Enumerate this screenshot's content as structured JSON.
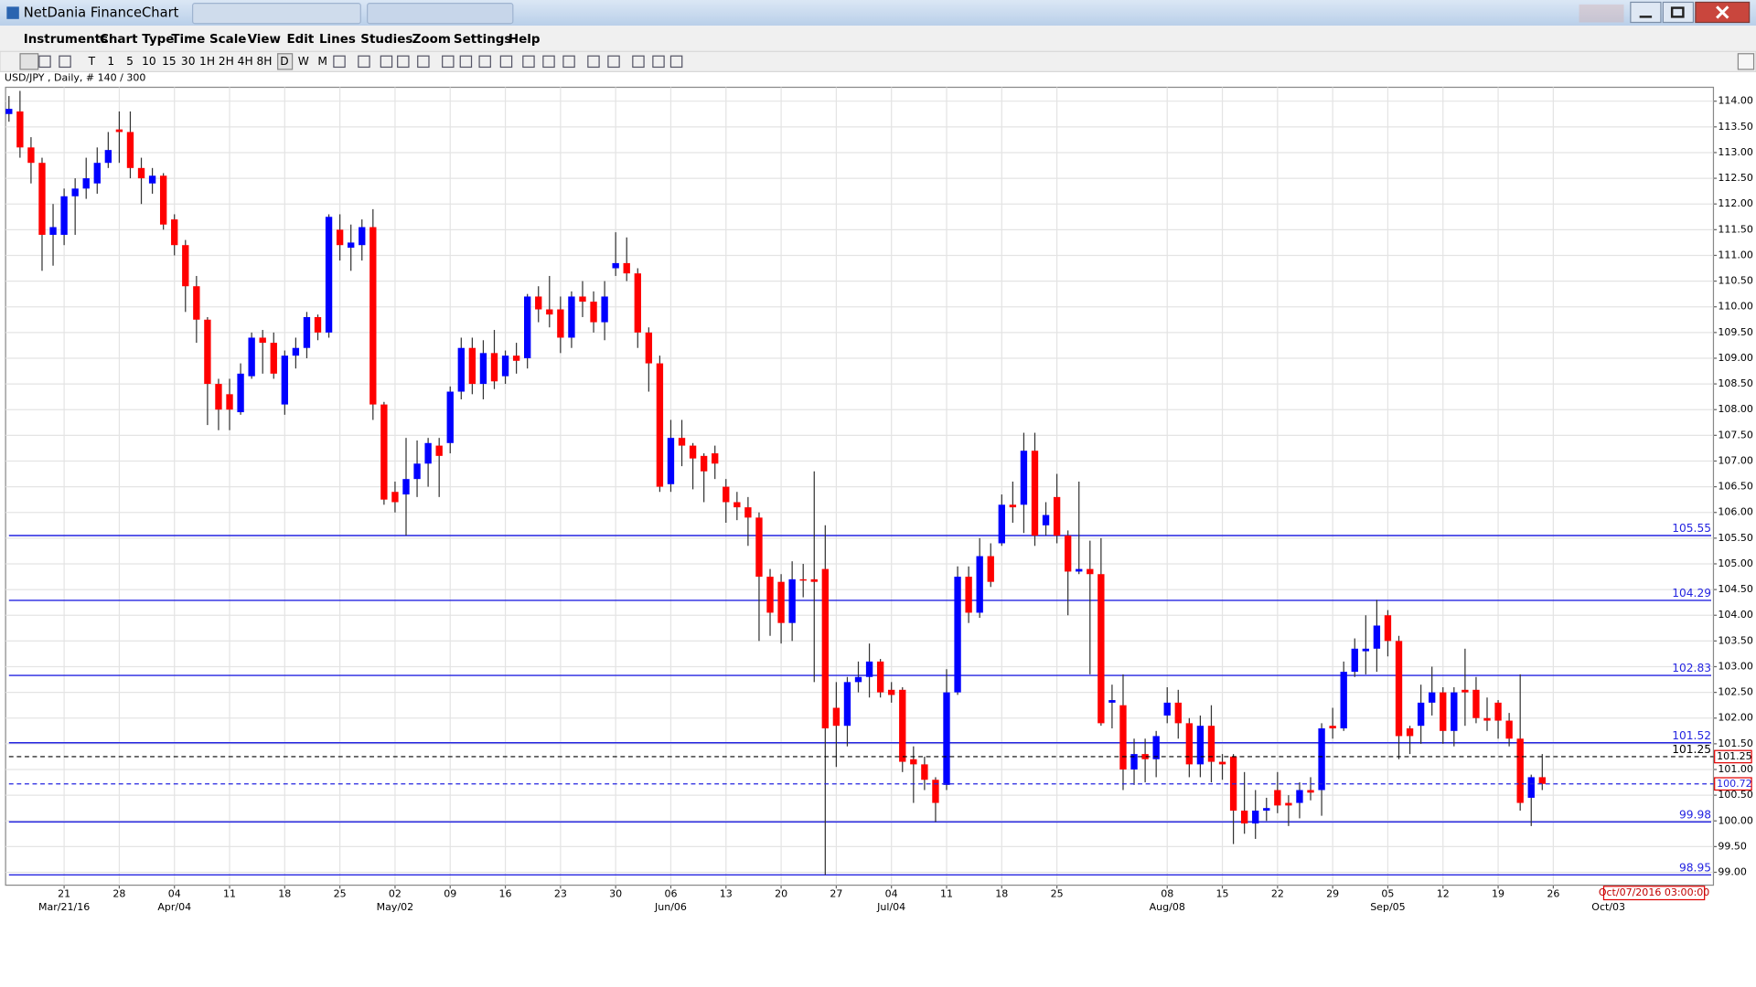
{
  "window": {
    "title": "NetDania FinanceChart"
  },
  "menu": [
    "Instruments",
    "Chart Type",
    "Time Scale",
    "View",
    "Edit",
    "Lines",
    "Studies",
    "Zoom",
    "Settings",
    "Help"
  ],
  "toolbar": [
    "T",
    "1",
    "5",
    "10",
    "15",
    "30",
    "1H",
    "2H",
    "4H",
    "8H",
    "D",
    "W",
    "M"
  ],
  "chart_data": {
    "type": "candlestick",
    "title": "USD/JPY , Daily, # 140 / 300",
    "up_color": "#0000ff",
    "down_color": "#ff0000",
    "x": [
      "2016-03-14",
      "2016-03-15",
      "2016-03-16",
      "2016-03-17",
      "2016-03-18",
      "2016-03-21",
      "2016-03-22",
      "2016-03-23",
      "2016-03-24",
      "2016-03-25",
      "2016-03-28",
      "2016-03-29",
      "2016-03-30",
      "2016-03-31",
      "2016-04-01",
      "2016-04-04",
      "2016-04-05",
      "2016-04-06",
      "2016-04-07",
      "2016-04-08",
      "2016-04-11",
      "2016-04-12",
      "2016-04-13",
      "2016-04-14",
      "2016-04-15",
      "2016-04-18",
      "2016-04-19",
      "2016-04-20",
      "2016-04-21",
      "2016-04-22",
      "2016-04-25",
      "2016-04-26",
      "2016-04-27",
      "2016-04-28",
      "2016-04-29",
      "2016-05-02",
      "2016-05-03",
      "2016-05-04",
      "2016-05-05",
      "2016-05-06",
      "2016-05-09",
      "2016-05-10",
      "2016-05-11",
      "2016-05-12",
      "2016-05-13",
      "2016-05-16",
      "2016-05-17",
      "2016-05-18",
      "2016-05-19",
      "2016-05-20",
      "2016-05-23",
      "2016-05-24",
      "2016-05-25",
      "2016-05-26",
      "2016-05-27",
      "2016-05-30",
      "2016-05-31",
      "2016-06-01",
      "2016-06-02",
      "2016-06-03",
      "2016-06-06",
      "2016-06-07",
      "2016-06-08",
      "2016-06-09",
      "2016-06-10",
      "2016-06-13",
      "2016-06-14",
      "2016-06-15",
      "2016-06-16",
      "2016-06-17",
      "2016-06-20",
      "2016-06-21",
      "2016-06-22",
      "2016-06-23",
      "2016-06-24",
      "2016-06-27",
      "2016-06-28",
      "2016-06-29",
      "2016-06-30",
      "2016-07-01",
      "2016-07-04",
      "2016-07-05",
      "2016-07-06",
      "2016-07-07",
      "2016-07-08",
      "2016-07-11",
      "2016-07-12",
      "2016-07-13",
      "2016-07-14",
      "2016-07-15",
      "2016-07-18",
      "2016-07-19",
      "2016-07-20",
      "2016-07-21",
      "2016-07-22",
      "2016-07-25",
      "2016-07-26",
      "2016-07-27",
      "2016-07-28",
      "2016-07-29",
      "2016-08-01",
      "2016-08-02",
      "2016-08-03",
      "2016-08-04",
      "2016-08-05",
      "2016-08-08",
      "2016-08-09",
      "2016-08-10",
      "2016-08-11",
      "2016-08-12",
      "2016-08-15",
      "2016-08-16",
      "2016-08-17",
      "2016-08-18",
      "2016-08-19",
      "2016-08-22",
      "2016-08-23",
      "2016-08-24",
      "2016-08-25",
      "2016-08-26",
      "2016-08-29",
      "2016-08-30",
      "2016-08-31",
      "2016-09-01",
      "2016-09-02",
      "2016-09-05",
      "2016-09-06",
      "2016-09-07",
      "2016-09-08",
      "2016-09-09",
      "2016-09-12",
      "2016-09-13",
      "2016-09-14",
      "2016-09-15",
      "2016-09-16",
      "2016-09-19",
      "2016-09-20",
      "2016-09-21",
      "2016-09-22",
      "2016-09-23"
    ],
    "open": [
      113.75,
      113.8,
      113.1,
      112.8,
      111.4,
      111.4,
      112.15,
      112.3,
      112.4,
      112.8,
      113.45,
      113.4,
      112.7,
      112.4,
      112.55,
      111.7,
      111.2,
      110.4,
      109.75,
      108.5,
      108.3,
      107.95,
      108.65,
      109.4,
      109.3,
      108.1,
      109.05,
      109.2,
      109.8,
      109.5,
      111.5,
      111.15,
      111.2,
      111.55,
      108.1,
      106.4,
      106.35,
      106.65,
      106.95,
      107.3,
      107.35,
      108.35,
      109.2,
      108.5,
      109.1,
      108.65,
      109.05,
      109.0,
      110.2,
      109.95,
      109.95,
      109.4,
      110.2,
      110.1,
      109.7,
      110.75,
      110.85,
      110.65,
      109.5,
      108.9,
      106.55,
      107.45,
      107.3,
      107.1,
      107.15,
      106.5,
      106.2,
      106.1,
      105.9,
      104.75,
      104.65,
      103.85,
      104.7,
      104.7,
      104.9,
      102.2,
      101.85,
      102.7,
      102.8,
      103.1,
      102.55,
      102.55,
      101.2,
      101.1,
      100.8,
      100.7,
      102.5,
      104.75,
      104.05,
      105.15,
      105.4,
      106.15,
      106.15,
      107.2,
      105.75,
      106.3,
      105.55,
      104.85,
      104.9,
      104.8,
      102.3,
      102.25,
      101.0,
      101.3,
      101.2,
      102.05,
      102.3,
      101.9,
      101.1,
      101.85,
      101.15,
      101.25,
      100.2,
      99.95,
      100.2,
      100.6,
      100.35,
      100.35,
      100.6,
      100.6,
      101.85,
      101.8,
      102.9,
      103.3,
      103.35,
      104.0,
      103.5,
      101.8,
      101.85,
      102.3,
      102.5,
      101.75,
      102.55,
      102.55,
      102.0,
      102.3,
      101.95,
      101.6,
      100.45,
      100.85
    ],
    "high": [
      114.1,
      114.2,
      113.3,
      112.9,
      112,
      112.3,
      112.5,
      112.9,
      113.1,
      113.4,
      113.8,
      113.8,
      112.9,
      112.7,
      112.6,
      111.8,
      111.3,
      110.6,
      109.8,
      108.6,
      108.6,
      108.9,
      109.5,
      109.55,
      109.5,
      109.15,
      109.4,
      109.9,
      109.85,
      111.8,
      111.8,
      111.6,
      111.7,
      111.9,
      108.15,
      106.6,
      107.45,
      107.4,
      107.45,
      107.45,
      108.45,
      109.4,
      109.4,
      109.35,
      109.55,
      109.15,
      109.3,
      110.25,
      110.4,
      110.6,
      110.2,
      110.3,
      110.5,
      110.3,
      110.5,
      111.45,
      111.35,
      110.75,
      109.6,
      109.05,
      107.8,
      107.8,
      107.35,
      107.15,
      107.3,
      106.65,
      106.4,
      106.3,
      106.0,
      104.9,
      104.8,
      105.05,
      105.0,
      106.8,
      105.75,
      102.7,
      102.8,
      103.1,
      103.45,
      103.15,
      102.7,
      102.6,
      101.45,
      101.25,
      100.85,
      102.95,
      104.95,
      104.95,
      105.5,
      105.4,
      106.35,
      106.6,
      107.55,
      107.55,
      106.2,
      106.75,
      105.65,
      106.6,
      105.45,
      105.5,
      102.65,
      102.85,
      101.6,
      101.6,
      101.75,
      102.6,
      102.55,
      102.0,
      102.05,
      102.25,
      101.3,
      101.3,
      100.95,
      100.6,
      100.45,
      100.95,
      100.5,
      100.75,
      100.85,
      101.9,
      102.2,
      103.1,
      103.55,
      104.0,
      104.3,
      104.1,
      103.6,
      101.85,
      102.65,
      103.0,
      102.6,
      102.6,
      103.35,
      102.8,
      102.4,
      102.35,
      102.1,
      102.85,
      100.9,
      101.3
    ],
    "low": [
      113.6,
      112.9,
      112.4,
      110.7,
      110.8,
      111.2,
      111.4,
      112.1,
      112.2,
      112.7,
      112.8,
      112.5,
      112.0,
      112.2,
      111.5,
      111.0,
      109.9,
      109.3,
      107.7,
      107.6,
      107.6,
      107.9,
      108.6,
      108.7,
      108.6,
      107.9,
      108.8,
      109.0,
      109.35,
      109.4,
      110.9,
      110.7,
      110.9,
      107.8,
      106.15,
      106.0,
      105.55,
      106.3,
      106.5,
      106.3,
      107.15,
      108.2,
      108.3,
      108.2,
      108.4,
      108.5,
      108.7,
      108.8,
      109.7,
      109.6,
      109.1,
      109.2,
      109.8,
      109.5,
      109.35,
      110.6,
      110.5,
      109.2,
      108.35,
      106.4,
      106.4,
      106.9,
      106.45,
      106.2,
      106.65,
      105.8,
      105.85,
      105.35,
      103.5,
      103.6,
      103.45,
      103.5,
      104.35,
      102.7,
      98.95,
      101.05,
      101.45,
      102.5,
      102.4,
      102.4,
      102.3,
      100.95,
      100.35,
      100.6,
      99.98,
      100.6,
      102.45,
      103.85,
      103.95,
      104.55,
      105.35,
      105.8,
      105.6,
      105.35,
      105.55,
      105.4,
      104.0,
      104.8,
      102.85,
      101.85,
      101.8,
      100.6,
      100.7,
      100.75,
      100.85,
      101.9,
      101.6,
      100.85,
      100.85,
      100.75,
      100.8,
      99.55,
      99.75,
      99.65,
      100.0,
      100.15,
      99.9,
      100.05,
      100.4,
      100.1,
      101.6,
      101.75,
      102.8,
      102.85,
      102.9,
      103.2,
      101.2,
      101.3,
      101.5,
      102.05,
      101.5,
      101.45,
      101.85,
      101.9,
      101.75,
      101.6,
      101.45,
      100.2,
      99.9,
      100.6
    ],
    "close": [
      113.85,
      113.1,
      112.8,
      111.4,
      111.55,
      112.15,
      112.3,
      112.5,
      112.8,
      113.05,
      113.4,
      112.7,
      112.5,
      112.55,
      111.6,
      111.2,
      110.4,
      109.75,
      108.5,
      108.0,
      108.0,
      108.7,
      109.4,
      109.3,
      108.7,
      109.05,
      109.2,
      109.8,
      109.5,
      111.75,
      111.2,
      111.25,
      111.55,
      108.1,
      106.25,
      106.2,
      106.65,
      106.95,
      107.35,
      107.1,
      108.35,
      109.2,
      108.5,
      109.1,
      108.55,
      109.05,
      108.95,
      110.2,
      109.95,
      109.85,
      109.4,
      110.2,
      110.1,
      109.7,
      110.2,
      110.85,
      110.65,
      109.5,
      108.9,
      106.5,
      107.45,
      107.3,
      107.05,
      106.8,
      106.95,
      106.2,
      106.1,
      105.9,
      104.75,
      104.05,
      103.85,
      104.7,
      104.68,
      104.65,
      101.8,
      101.85,
      102.7,
      102.8,
      103.1,
      102.5,
      102.45,
      101.15,
      101.1,
      100.8,
      100.35,
      102.5,
      104.75,
      104.05,
      105.15,
      104.65,
      106.15,
      106.1,
      107.2,
      105.55,
      105.95,
      105.55,
      104.85,
      104.9,
      104.8,
      101.9,
      102.35,
      101.0,
      101.3,
      101.2,
      101.65,
      102.3,
      101.9,
      101.1,
      101.85,
      101.15,
      101.1,
      100.2,
      99.95,
      100.2,
      100.25,
      100.3,
      100.3,
      100.6,
      100.55,
      101.8,
      101.8,
      102.9,
      103.35,
      103.35,
      103.8,
      103.5,
      101.65,
      101.65,
      102.3,
      102.5,
      101.75,
      102.5,
      102.5,
      102.0,
      101.95,
      101.95,
      101.6,
      100.35,
      100.85,
      100.72
    ],
    "ylim": [
      98.75,
      114.27
    ],
    "yticks": [
      {
        "value": 99,
        "label": "99.00"
      },
      {
        "value": 99.5,
        "label": "99.50"
      },
      {
        "value": 100,
        "label": "100.00"
      },
      {
        "value": 100.5,
        "label": "100.50"
      },
      {
        "value": 101,
        "label": "101.00"
      },
      {
        "value": 101.5,
        "label": "101.50"
      },
      {
        "value": 102,
        "label": "102.00"
      },
      {
        "value": 102.5,
        "label": "102.50"
      },
      {
        "value": 103,
        "label": "103.00"
      },
      {
        "value": 103.5,
        "label": "103.50"
      },
      {
        "value": 104,
        "label": "104.00"
      },
      {
        "value": 104.5,
        "label": "104.50"
      },
      {
        "value": 105,
        "label": "105.00"
      },
      {
        "value": 105.5,
        "label": "105.50"
      },
      {
        "value": 106,
        "label": "106.00"
      },
      {
        "value": 106.5,
        "label": "106.50"
      },
      {
        "value": 107,
        "label": "107.00"
      },
      {
        "value": 107.5,
        "label": "107.50"
      },
      {
        "value": 108,
        "label": "108.00"
      },
      {
        "value": 108.5,
        "label": "108.50"
      },
      {
        "value": 109,
        "label": "109.00"
      },
      {
        "value": 109.5,
        "label": "109.50"
      },
      {
        "value": 110,
        "label": "110.00"
      },
      {
        "value": 110.5,
        "label": "110.50"
      },
      {
        "value": 111,
        "label": "111.00"
      },
      {
        "value": 111.5,
        "label": "111.50"
      },
      {
        "value": 112,
        "label": "112.00"
      },
      {
        "value": 112.5,
        "label": "112.50"
      },
      {
        "value": 113,
        "label": "113.00"
      },
      {
        "value": 113.5,
        "label": "113.50"
      },
      {
        "value": 114,
        "label": "114.00"
      }
    ],
    "xticks": [
      {
        "value": "2016-03-21",
        "label": "21"
      },
      {
        "value": "2016-03-28",
        "label": "28"
      },
      {
        "value": "2016-04-04",
        "label": "04"
      },
      {
        "value": "2016-04-11",
        "label": "11"
      },
      {
        "value": "2016-04-18",
        "label": "18"
      },
      {
        "value": "2016-04-25",
        "label": "25"
      },
      {
        "value": "2016-05-02",
        "label": "02"
      },
      {
        "value": "2016-05-09",
        "label": "09"
      },
      {
        "value": "2016-05-16",
        "label": "16"
      },
      {
        "value": "2016-05-23",
        "label": "23"
      },
      {
        "value": "2016-05-30",
        "label": "30"
      },
      {
        "value": "2016-06-06",
        "label": "06"
      },
      {
        "value": "2016-06-13",
        "label": "13"
      },
      {
        "value": "2016-06-20",
        "label": "20"
      },
      {
        "value": "2016-06-27",
        "label": "27"
      },
      {
        "value": "2016-07-04",
        "label": "04"
      },
      {
        "value": "2016-07-11",
        "label": "11"
      },
      {
        "value": "2016-07-18",
        "label": "18"
      },
      {
        "value": "2016-07-25",
        "label": "25"
      },
      {
        "value": "2016-08-08",
        "label": "08"
      },
      {
        "value": "2016-08-15",
        "label": "15"
      },
      {
        "value": "2016-08-22",
        "label": "22"
      },
      {
        "value": "2016-08-29",
        "label": "29"
      },
      {
        "value": "2016-09-05",
        "label": "05"
      },
      {
        "value": "2016-09-12",
        "label": "12"
      },
      {
        "value": "2016-09-19",
        "label": "19"
      },
      {
        "value": "2016-09-26",
        "label": "26"
      }
    ],
    "xticks_major": [
      {
        "value": "2016-03-21",
        "label": "Mar/21/16"
      },
      {
        "value": "2016-04-04",
        "label": "Apr/04"
      },
      {
        "value": "2016-05-02",
        "label": "May/02"
      },
      {
        "value": "2016-06-06",
        "label": "Jun/06"
      },
      {
        "value": "2016-07-04",
        "label": "Jul/04"
      },
      {
        "value": "2016-08-08",
        "label": "Aug/08"
      },
      {
        "value": "2016-09-05",
        "label": "Sep/05"
      },
      {
        "value": "2016-10-03",
        "label": "Oct/03"
      }
    ],
    "grid": true,
    "hlines": [
      105.55,
      104.29,
      102.83,
      101.52,
      99.98,
      98.95
    ],
    "hline_color": "#2424e0",
    "price_lines": [
      {
        "value": 101.25,
        "color": "#000000"
      },
      {
        "value": 100.72,
        "color": "#2424e0"
      }
    ],
    "cursor_label": "Oct/07/2016 03:00:00"
  }
}
